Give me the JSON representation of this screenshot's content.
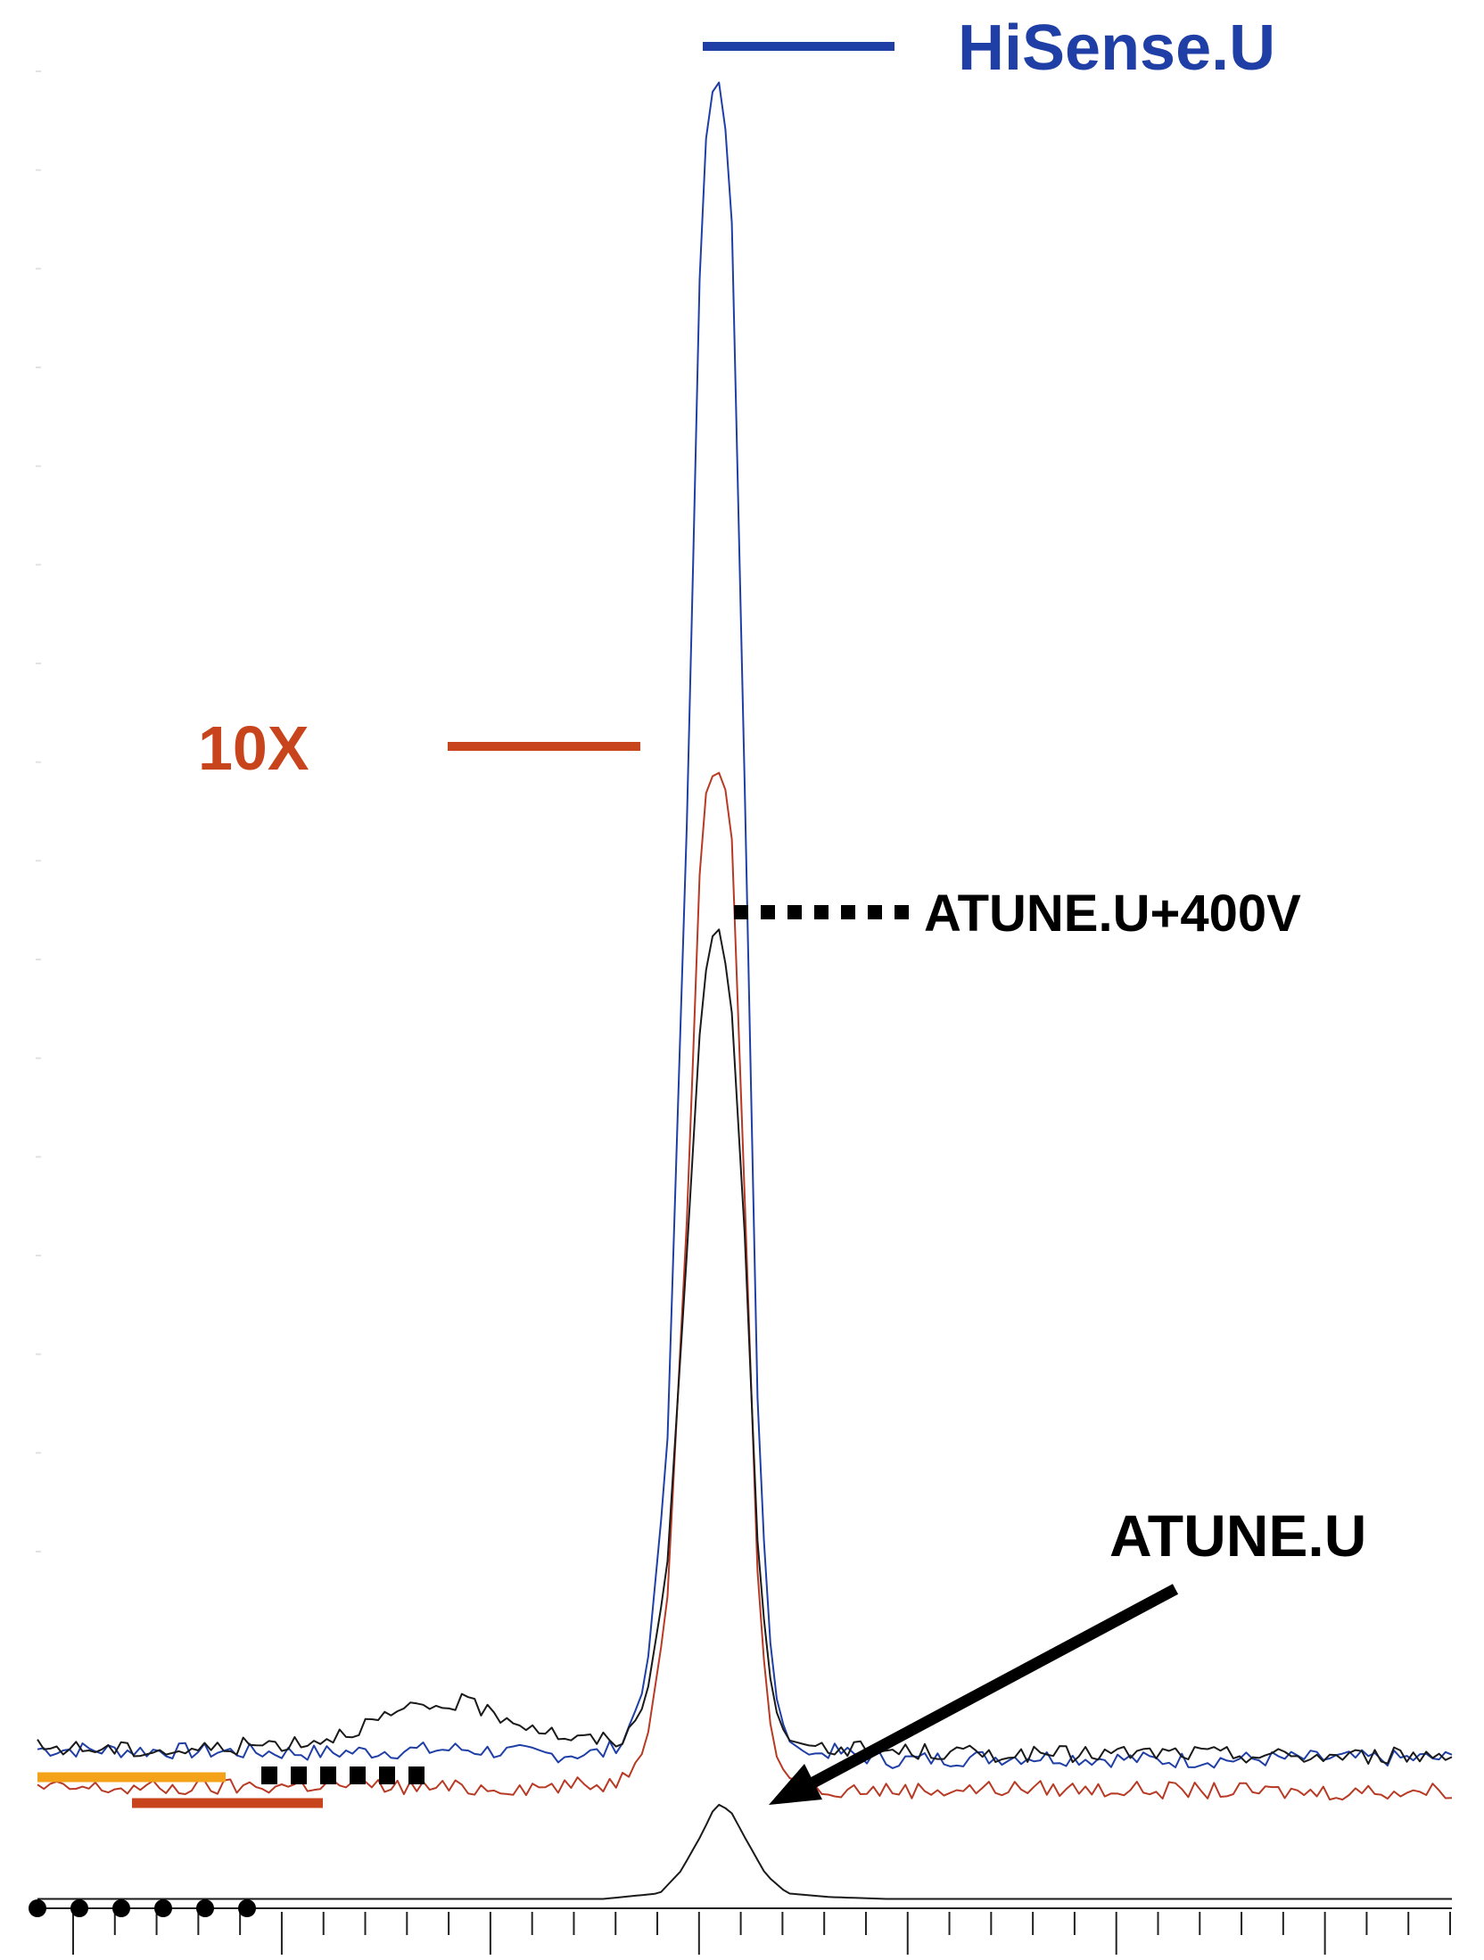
{
  "chart_data": {
    "type": "line",
    "title": "",
    "xlabel": "",
    "ylabel": "",
    "grid": false,
    "x_range": [
      0,
      100
    ],
    "y_range": [
      0,
      100
    ],
    "series": [
      {
        "name": "HiSense.U",
        "color": "#1f3fa6",
        "x": [
          0,
          10,
          20,
          30,
          36,
          40,
          41.5,
          43,
          44.5,
          46,
          47,
          48,
          49,
          50,
          51,
          52,
          53,
          54.5,
          56,
          60,
          70,
          80,
          90,
          100
        ],
        "y": [
          8.5,
          8.4,
          8.3,
          8.5,
          8.2,
          8.3,
          9,
          12,
          24,
          60,
          93,
          98.5,
          93,
          60,
          24,
          12,
          9,
          8.2,
          8.4,
          7.9,
          8.1,
          7.9,
          8,
          8
        ]
      },
      {
        "name": "10X",
        "color": "#b83a24",
        "x": [
          0,
          10,
          20,
          30,
          36,
          40,
          41.5,
          43,
          44.5,
          46,
          47,
          48,
          49,
          50,
          51,
          52,
          53,
          54.5,
          56,
          60,
          70,
          80,
          90,
          100
        ],
        "y": [
          6.4,
          6.4,
          6.6,
          6.4,
          6.5,
          6.6,
          7,
          8.5,
          16,
          38,
          59,
          61,
          59,
          38,
          16,
          8.5,
          7,
          6.6,
          6.4,
          6.3,
          6.4,
          6.3,
          6.2,
          6.3
        ]
      },
      {
        "name": "ATUNE.U+400V",
        "color": "#1a1a1a",
        "x": [
          0,
          10,
          20,
          26,
          30,
          34,
          38,
          41.5,
          43,
          44.5,
          46,
          47,
          48,
          49,
          50,
          51,
          52,
          53,
          54.5,
          56,
          60,
          70,
          80,
          90,
          100
        ],
        "y": [
          8.6,
          8.4,
          9,
          10.5,
          11,
          10,
          9,
          9,
          11,
          18,
          36,
          49,
          53,
          49,
          36,
          18,
          11,
          9,
          8.7,
          8.6,
          8.4,
          8.2,
          8.3,
          8.1,
          8.2
        ]
      },
      {
        "name": "ATUNE.U",
        "color": "#1a1a1a",
        "x": [
          0,
          10,
          20,
          30,
          40,
          44,
          45.5,
          47,
          48,
          49,
          50,
          51.5,
          53,
          56,
          60,
          70,
          80,
          90,
          100
        ],
        "y": [
          0.5,
          0.5,
          0.5,
          0.5,
          0.5,
          0.8,
          2,
          4,
          5.6,
          5.2,
          3.8,
          1.8,
          0.8,
          0.6,
          0.5,
          0.5,
          0.5,
          0.5,
          0.5
        ]
      }
    ],
    "labels": {
      "hisense": "HiSense.U",
      "tenx": "10X",
      "atune400": "ATUNE.U+400V",
      "atune": "ATUNE.U"
    },
    "legend_markers": [
      {
        "style": "solid",
        "color": "#f5a21b"
      },
      {
        "style": "solid",
        "color": "#c8441c"
      },
      {
        "style": "square-dots",
        "color": "#000000"
      },
      {
        "style": "round-dots",
        "color": "#000000"
      }
    ],
    "axes": {
      "show_tick_labels": false,
      "x_ticks": 34,
      "y_faint_ticks": 16
    }
  }
}
